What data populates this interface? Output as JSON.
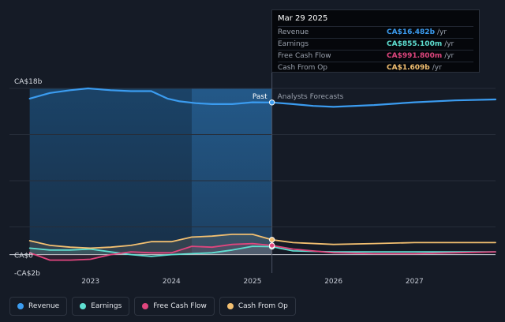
{
  "chart_data": {
    "type": "line",
    "x_ticks": [
      "2023",
      "2024",
      "2025",
      "2026",
      "2027"
    ],
    "y_ticks": [
      "CA$18b",
      "CA$0",
      "-CA$2b"
    ],
    "ylim": [
      -2,
      18
    ],
    "divider_label_past": "Past",
    "divider_label_forecast": "Analysts Forecasts",
    "colors": {
      "revenue": "#3b9cf0",
      "earnings": "#5fe0d2",
      "fcf": "#e0467e",
      "cfo": "#f3c071"
    },
    "series": [
      {
        "name": "Revenue",
        "key": "revenue",
        "x": [
          2022.25,
          2022.5,
          2022.75,
          2022.97,
          2023.25,
          2023.5,
          2023.75,
          2023.95,
          2024.1,
          2024.3,
          2024.5,
          2024.75,
          2025.0,
          2025.24,
          2025.5,
          2025.75,
          2026.0,
          2026.5,
          2027.0,
          2027.5,
          2028.0
        ],
        "y": [
          16.9,
          17.5,
          17.8,
          18.0,
          17.8,
          17.7,
          17.7,
          16.9,
          16.6,
          16.4,
          16.3,
          16.3,
          16.5,
          16.48,
          16.3,
          16.1,
          16.0,
          16.2,
          16.5,
          16.7,
          16.8
        ]
      },
      {
        "name": "Earnings",
        "key": "earnings",
        "x": [
          2022.25,
          2022.5,
          2022.75,
          2023.0,
          2023.25,
          2023.5,
          2023.75,
          2024.0,
          2024.25,
          2024.5,
          2024.75,
          2025.0,
          2025.24,
          2025.5,
          2026.0,
          2026.5,
          2027.0,
          2027.5,
          2028.0
        ],
        "y": [
          0.7,
          0.5,
          0.5,
          0.6,
          0.3,
          0.0,
          -0.2,
          0.0,
          0.1,
          0.2,
          0.5,
          0.9,
          0.86,
          0.4,
          0.3,
          0.3,
          0.3,
          0.3,
          0.3
        ]
      },
      {
        "name": "Free Cash Flow",
        "key": "fcf",
        "x": [
          2022.25,
          2022.5,
          2022.75,
          2023.0,
          2023.25,
          2023.5,
          2023.75,
          2024.0,
          2024.25,
          2024.5,
          2024.75,
          2025.0,
          2025.24,
          2025.5,
          2026.0,
          2026.5,
          2027.0,
          2027.5,
          2028.0
        ],
        "y": [
          0.2,
          -0.6,
          -0.6,
          -0.5,
          0.0,
          0.3,
          0.2,
          0.2,
          0.9,
          0.8,
          1.1,
          1.2,
          0.99,
          0.6,
          0.2,
          0.1,
          0.1,
          0.2,
          0.3
        ]
      },
      {
        "name": "Cash From Op",
        "key": "cfo",
        "x": [
          2022.25,
          2022.5,
          2022.75,
          2023.0,
          2023.25,
          2023.5,
          2023.75,
          2024.0,
          2024.25,
          2024.5,
          2024.75,
          2025.0,
          2025.24,
          2025.5,
          2026.0,
          2026.5,
          2027.0,
          2027.5,
          2028.0
        ],
        "y": [
          1.5,
          1.0,
          0.8,
          0.7,
          0.8,
          1.0,
          1.4,
          1.4,
          1.9,
          2.0,
          2.2,
          2.2,
          1.61,
          1.3,
          1.1,
          1.2,
          1.3,
          1.3,
          1.3
        ]
      }
    ],
    "tooltip": {
      "date": "Mar 29 2025",
      "rows": [
        {
          "label": "Revenue",
          "value": "CA$16.482b",
          "unit": "/yr",
          "key": "revenue"
        },
        {
          "label": "Earnings",
          "value": "CA$855.100m",
          "unit": "/yr",
          "key": "earnings"
        },
        {
          "label": "Free Cash Flow",
          "value": "CA$991.800m",
          "unit": "/yr",
          "key": "fcf"
        },
        {
          "label": "Cash From Op",
          "value": "CA$1.609b",
          "unit": "/yr",
          "key": "cfo"
        }
      ]
    },
    "legend": [
      {
        "label": "Revenue",
        "key": "revenue"
      },
      {
        "label": "Earnings",
        "key": "earnings"
      },
      {
        "label": "Free Cash Flow",
        "key": "fcf"
      },
      {
        "label": "Cash From Op",
        "key": "cfo"
      }
    ]
  }
}
